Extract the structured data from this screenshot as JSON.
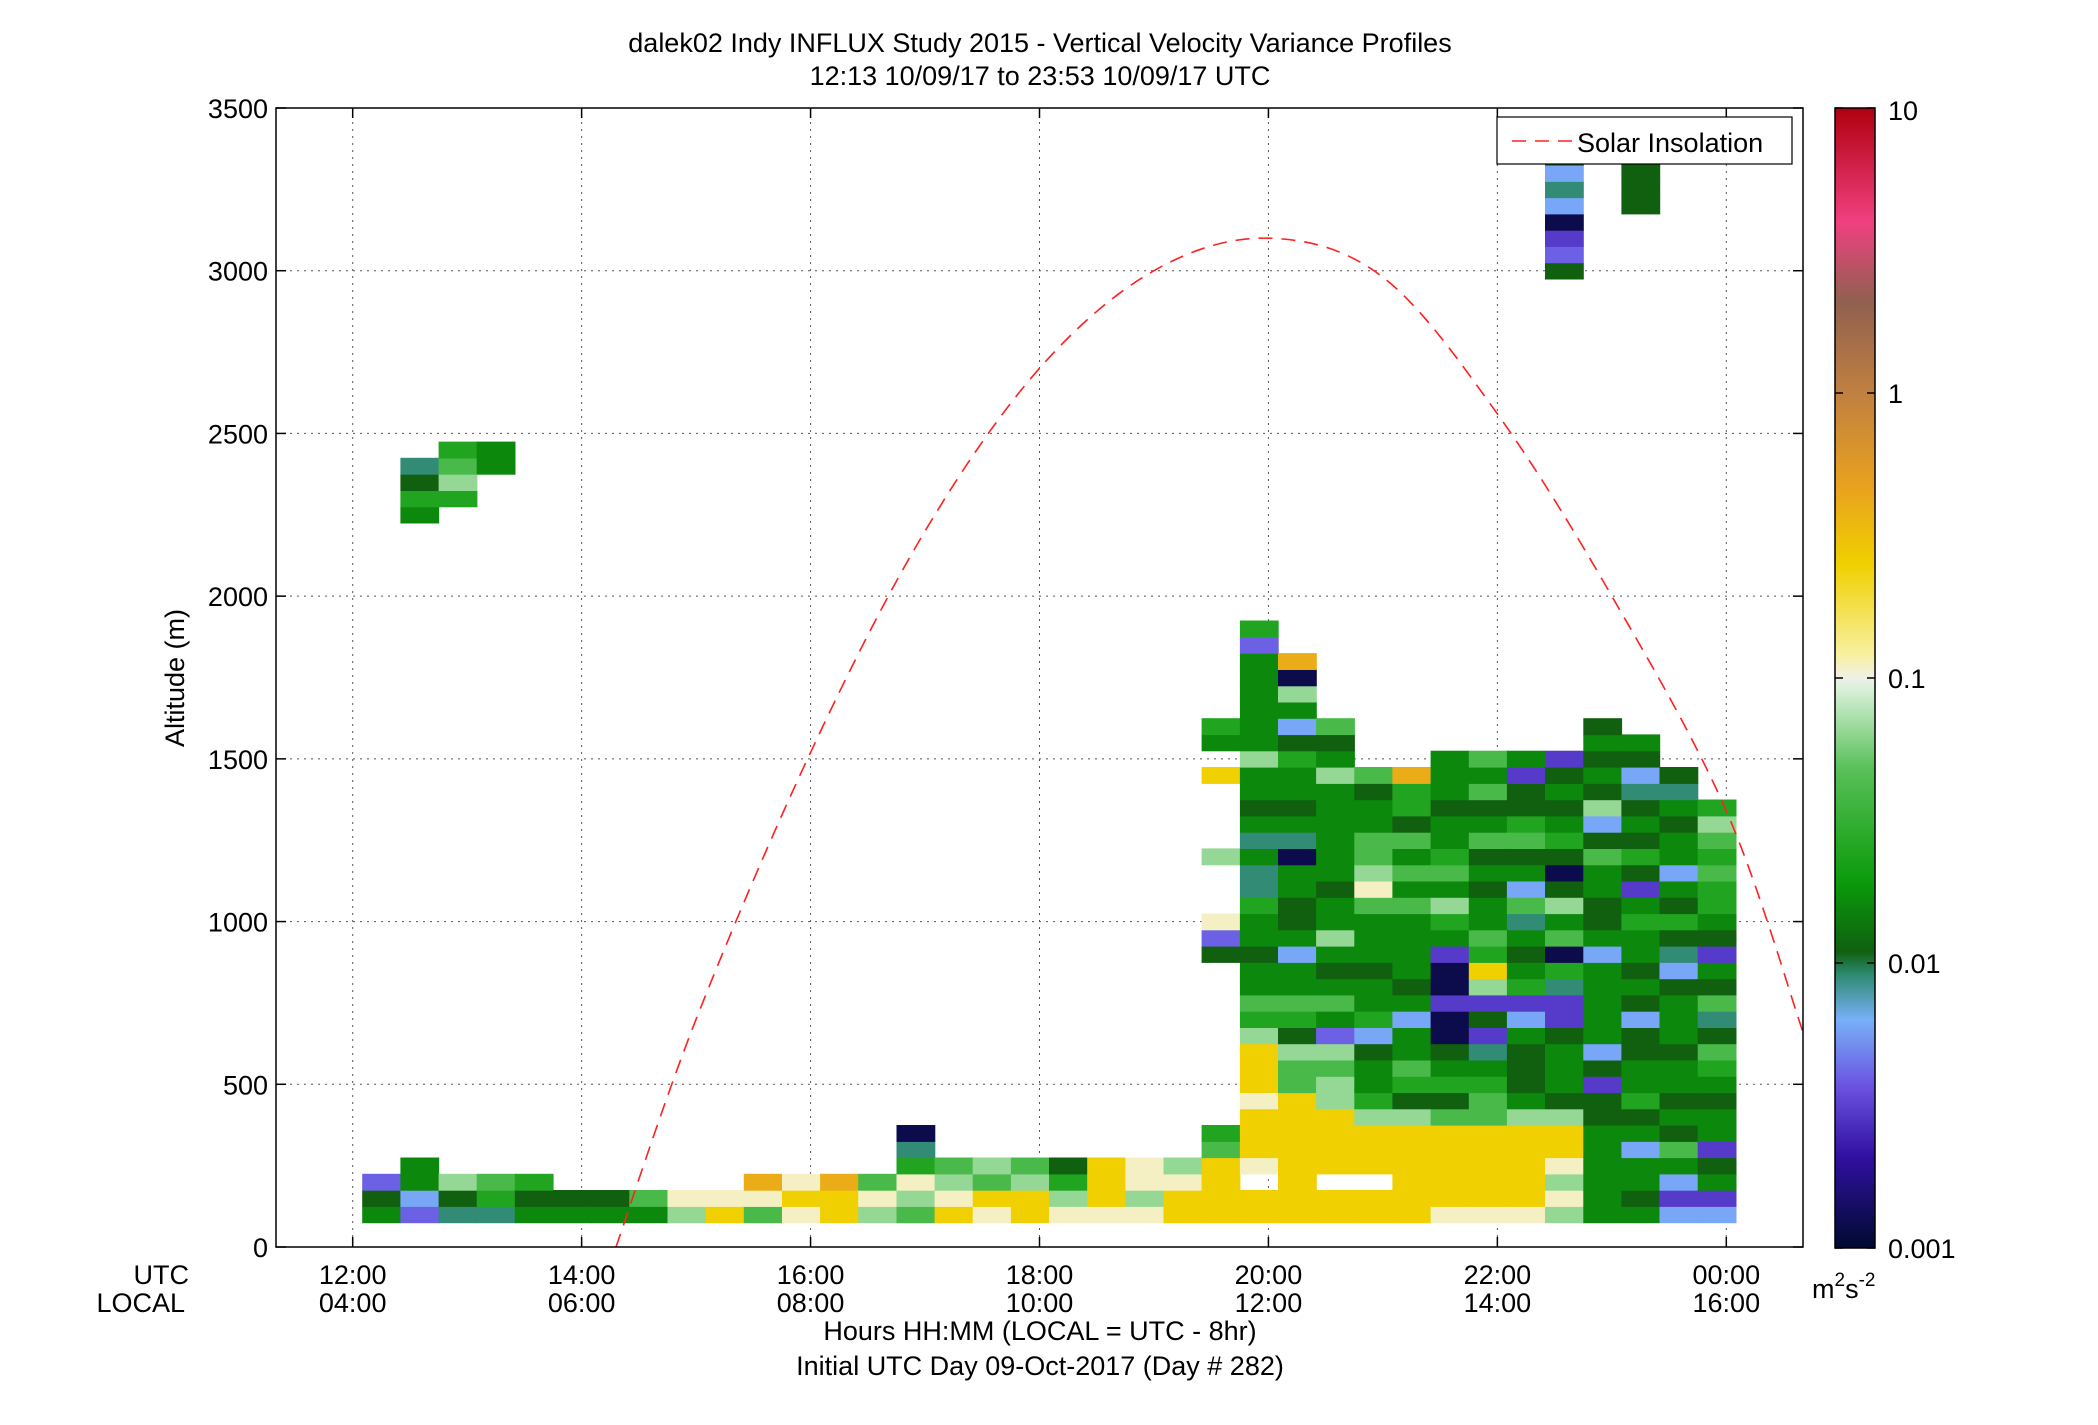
{
  "chart_data": {
    "type": "heatmap",
    "title": "dalek02 Indy INFLUX Study 2015 - Vertical Velocity Variance Profiles",
    "subtitle": "12:13 10/09/17 to 23:53 10/09/17  UTC",
    "ylabel": "Altitude (m)",
    "xlabel": "Hours HH:MM  (LOCAL = UTC - 8hr)",
    "xlabel2": "Initial UTC Day 09-Oct-2017 (Day # 282)",
    "row_label_utc": "UTC",
    "row_label_local": "LOCAL",
    "x_ticks": [
      {
        "hour": 12,
        "utc": "12:00",
        "local": "04:00"
      },
      {
        "hour": 14,
        "utc": "14:00",
        "local": "06:00"
      },
      {
        "hour": 16,
        "utc": "16:00",
        "local": "08:00"
      },
      {
        "hour": 18,
        "utc": "18:00",
        "local": "10:00"
      },
      {
        "hour": 20,
        "utc": "20:00",
        "local": "12:00"
      },
      {
        "hour": 22,
        "utc": "22:00",
        "local": "14:00"
      },
      {
        "hour": 24,
        "utc": "00:00",
        "local": "16:00"
      }
    ],
    "y_ticks": [
      0,
      500,
      1000,
      1500,
      2000,
      2500,
      3000,
      3500
    ],
    "xlim": [
      11.33,
      24.67
    ],
    "ylim": [
      0,
      3500
    ],
    "grid": true,
    "legend": {
      "label": "Solar Insolation",
      "placement": "top-right"
    },
    "colorbar": {
      "scale": "log",
      "min": 0.001,
      "max": 10,
      "ticks": [
        "0.001",
        "0.01",
        "0.1",
        "1",
        "10"
      ],
      "unit": "m²s⁻²"
    },
    "solar_insolation": {
      "style": "dashed",
      "color": "#ff2020",
      "points": [
        [
          14.3,
          0
        ],
        [
          15,
          700
        ],
        [
          16,
          1520
        ],
        [
          17,
          2200
        ],
        [
          18,
          2700
        ],
        [
          19,
          3000
        ],
        [
          20,
          3100
        ],
        [
          21,
          2980
        ],
        [
          22,
          2560
        ],
        [
          23,
          2000
        ],
        [
          24,
          1340
        ],
        [
          24.67,
          660
        ]
      ]
    },
    "variance_cells": {
      "bin_minutes": 20,
      "bin_m": 50,
      "codes": {
        "N": 0.0012,
        "P": 0.003,
        "V": 0.004,
        "B": 0.006,
        "T": 0.009,
        "D": 0.011,
        "G": 0.016,
        "M": 0.025,
        "L": 0.04,
        "W": 0.065,
        "S": 0.11,
        "Y": 0.25,
        "O": 0.4,
        "K": 0.55
      },
      "columns": [
        {
          "t": 12.25,
          "base": 100,
          "cells": "GDV"
        },
        {
          "t": 12.583,
          "base": 100,
          "cells": "VBGG",
          "top_base": 2250,
          "top_cells": "GMDT"
        },
        {
          "t": 12.917,
          "base": 100,
          "cells": "TDW",
          "top_base": 2300,
          "top_cells": "MWLM"
        },
        {
          "t": 13.25,
          "base": 100,
          "cells": "TML",
          "top_base": 2400,
          "top_cells": "GG"
        },
        {
          "t": 13.583,
          "base": 100,
          "cells": "GDM"
        },
        {
          "t": 13.917,
          "base": 100,
          "cells": "GD"
        },
        {
          "t": 14.25,
          "base": 100,
          "cells": "GD"
        },
        {
          "t": 14.583,
          "base": 100,
          "cells": "GL"
        },
        {
          "t": 14.917,
          "base": 100,
          "cells": "WS"
        },
        {
          "t": 15.25,
          "base": 100,
          "cells": "YS"
        },
        {
          "t": 15.583,
          "base": 100,
          "cells": "LSO"
        },
        {
          "t": 15.917,
          "base": 100,
          "cells": "SYS"
        },
        {
          "t": 16.25,
          "base": 100,
          "cells": "YYO"
        },
        {
          "t": 16.583,
          "base": 100,
          "cells": "WSL"
        },
        {
          "t": 16.917,
          "base": 100,
          "cells": "LWSMTN"
        },
        {
          "t": 17.25,
          "base": 100,
          "cells": "YSWL"
        },
        {
          "t": 17.583,
          "base": 100,
          "cells": "SYLW"
        },
        {
          "t": 17.917,
          "base": 100,
          "cells": "YYWL"
        },
        {
          "t": 18.25,
          "base": 100,
          "cells": "SWMD"
        },
        {
          "t": 18.583,
          "base": 100,
          "cells": "SYYY"
        },
        {
          "t": 18.917,
          "base": 100,
          "cells": "SWSS"
        },
        {
          "t": 19.25,
          "base": 100,
          "cells": "YYSW"
        },
        {
          "t": 19.583,
          "base": 100,
          "cells": "YYYYLM",
          "top_base": 900,
          "top_cells": "DVS",
          "mid_base": 1200,
          "mid_cells": "W",
          "hi_base": 1450,
          "hi_cells": "Y",
          "hi2_base": 1550,
          "hi2_cells": "GM"
        },
        {
          "t": 19.917,
          "base": 100,
          "cells": "YYYSYYYSYYYWMLGGDGGMTTGTGDGGWGGGGGGVM",
          "gaps": [
            2
          ],
          "skip_over": 1900
        },
        {
          "t": 20.25,
          "base": 100,
          "cells": "YYYYYYYYLLWDMLGGBGDDGGNTGDGGMDBGWNO"
        },
        {
          "t": 20.583,
          "base": 100,
          "cells": "YYYYYYYWWLWVGLGDGWGGDGGGGGGWGDL",
          "gaps": [
            2
          ]
        },
        {
          "t": 20.917,
          "base": 100,
          "cells": "YYYYYYWMGGDBMGGDGGGLSWLLGGDL",
          "gaps": [
            2
          ]
        },
        {
          "t": 21.25,
          "base": 100,
          "cells": "YYYYYYWDMLGGBGDGGGGLGLGLDMMO"
        },
        {
          "t": 21.583,
          "base": 100,
          "cells": "SYYYYYLDMGDNNPNNPGMWGLMGGDGGG"
        },
        {
          "t": 21.917,
          "base": 100,
          "cells": "SYYYYYLLMGTPDPWYMLGGDGDLGDLGL"
        },
        {
          "t": 22.25,
          "base": 100,
          "cells": "SYYYYYWGDDDGBPMGDGTLBGDLMDDPG"
        },
        {
          "t": 22.583,
          "base": 100,
          "cells": "WSWSYYWDGGGDPPTMNLGWDNDMGDGDP",
          "top_base": 3000,
          "top_cells": "DVPNBTBD"
        },
        {
          "t": 22.917,
          "base": 100,
          "cells": "GGGGGGDDPDBGGGGGBGDDGGLDBWDGDGD"
        },
        {
          "t": 23.25,
          "base": 100,
          "cells": "GDGGBGDMGGDDBDGDGGMGPDMDGDTBDG",
          "top_base": 3200,
          "top_cells": "DDDD"
        },
        {
          "t": 23.583,
          "base": 100,
          "cells": "BPBGLDGDGGDGGGDBTDMDGBGGDGTD"
        },
        {
          "t": 23.917,
          "base": 100,
          "cells": "BPGDPGGDGMLDTLDGPDGMMLMLWM"
        }
      ]
    }
  }
}
